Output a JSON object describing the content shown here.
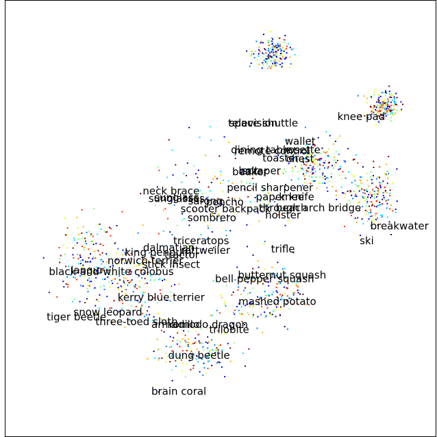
{
  "chart_data": {
    "type": "scatter",
    "title": "",
    "xlabel": "",
    "ylabel": "",
    "grid": false,
    "legend": "none",
    "xlim": [
      0,
      100
    ],
    "ylim": [
      0,
      100
    ],
    "ylim_inverted": true,
    "colormap": [
      "#00007f",
      "#0000ff",
      "#0080ff",
      "#00e5ff",
      "#7dff7a",
      "#e5ff13",
      "#ffb000",
      "#ff2900",
      "#7f0000"
    ],
    "annotations": [
      {
        "text": "knee pad",
        "x": 82.7,
        "y": 26.7
      },
      {
        "text": "television",
        "x": 57.5,
        "y": 28.2
      },
      {
        "text": "space shuttle",
        "x": 60.0,
        "y": 28.2
      },
      {
        "text": "wallet",
        "x": 68.5,
        "y": 32.4
      },
      {
        "text": "remote control",
        "x": 62.0,
        "y": 34.6
      },
      {
        "text": "dining table",
        "x": 59.5,
        "y": 34.3
      },
      {
        "text": "rosette",
        "x": 69.0,
        "y": 34.3
      },
      {
        "text": "toaster",
        "x": 64.0,
        "y": 36.2
      },
      {
        "text": "chest",
        "x": 68.5,
        "y": 36.4
      },
      {
        "text": "beaker",
        "x": 56.8,
        "y": 39.4
      },
      {
        "text": "scraper",
        "x": 59.5,
        "y": 39.1
      },
      {
        "text": "bolt",
        "x": 56.5,
        "y": 39.1
      },
      {
        "text": "pencil sharpener",
        "x": 61.5,
        "y": 43.0
      },
      {
        "text": "neck brace",
        "x": 38.5,
        "y": 43.8
      },
      {
        "text": "paper knife",
        "x": 65.0,
        "y": 45.1
      },
      {
        "text": "sunglass",
        "x": 39.8,
        "y": 45.3
      },
      {
        "text": "sunglasses",
        "x": 39.8,
        "y": 45.5
      },
      {
        "text": "sarong",
        "x": 46.5,
        "y": 46.1
      },
      {
        "text": "poncho",
        "x": 51.0,
        "y": 46.3
      },
      {
        "text": "knee",
        "x": 66.5,
        "y": 45.1
      },
      {
        "text": "beach",
        "x": 66.5,
        "y": 47.6
      },
      {
        "text": "through arch bridge",
        "x": 70.8,
        "y": 47.6
      },
      {
        "text": "scooter backpack",
        "x": 51.2,
        "y": 47.9
      },
      {
        "text": "holster",
        "x": 64.5,
        "y": 49.3
      },
      {
        "text": "sombrero",
        "x": 48.0,
        "y": 49.9
      },
      {
        "text": "breakwater",
        "x": 91.6,
        "y": 51.8
      },
      {
        "text": "ski",
        "x": 84.0,
        "y": 55.2
      },
      {
        "text": "triceratops",
        "x": 45.5,
        "y": 55.2
      },
      {
        "text": "dalmatian",
        "x": 38.0,
        "y": 56.8
      },
      {
        "text": "rottweiler",
        "x": 46.5,
        "y": 57.4
      },
      {
        "text": "trifle",
        "x": 64.5,
        "y": 57.1
      },
      {
        "text": "king penguin",
        "x": 35.5,
        "y": 57.9
      },
      {
        "text": "tractor",
        "x": 41.0,
        "y": 58.4
      },
      {
        "text": "norwich terrier",
        "x": 32.5,
        "y": 59.8
      },
      {
        "text": "stick insect",
        "x": 38.5,
        "y": 60.6
      },
      {
        "text": "langur",
        "x": 19.0,
        "y": 62.0
      },
      {
        "text": "black-and-white colobus",
        "x": 24.6,
        "y": 62.3
      },
      {
        "text": "butternut squash",
        "x": 64.3,
        "y": 63.1
      },
      {
        "text": "bell pepper",
        "x": 55.5,
        "y": 63.9
      },
      {
        "text": "squash",
        "x": 67.5,
        "y": 63.9
      },
      {
        "text": "kerry blue terrier",
        "x": 36.2,
        "y": 68.2
      },
      {
        "text": "mashed potato",
        "x": 63.2,
        "y": 69.1
      },
      {
        "text": "snow leopard",
        "x": 23.8,
        "y": 71.6
      },
      {
        "text": "tiger beetle",
        "x": 16.5,
        "y": 72.7
      },
      {
        "text": "three-toed sloth",
        "x": 30.5,
        "y": 73.8
      },
      {
        "text": "armadillo",
        "x": 39.5,
        "y": 74.4
      },
      {
        "text": "komodo dragon",
        "x": 47.0,
        "y": 74.4
      },
      {
        "text": "trilobite",
        "x": 52.0,
        "y": 75.6
      },
      {
        "text": "dung beetle",
        "x": 45.0,
        "y": 81.5
      },
      {
        "text": "brain coral",
        "x": 40.3,
        "y": 89.8
      }
    ],
    "point_count": 1500
  }
}
